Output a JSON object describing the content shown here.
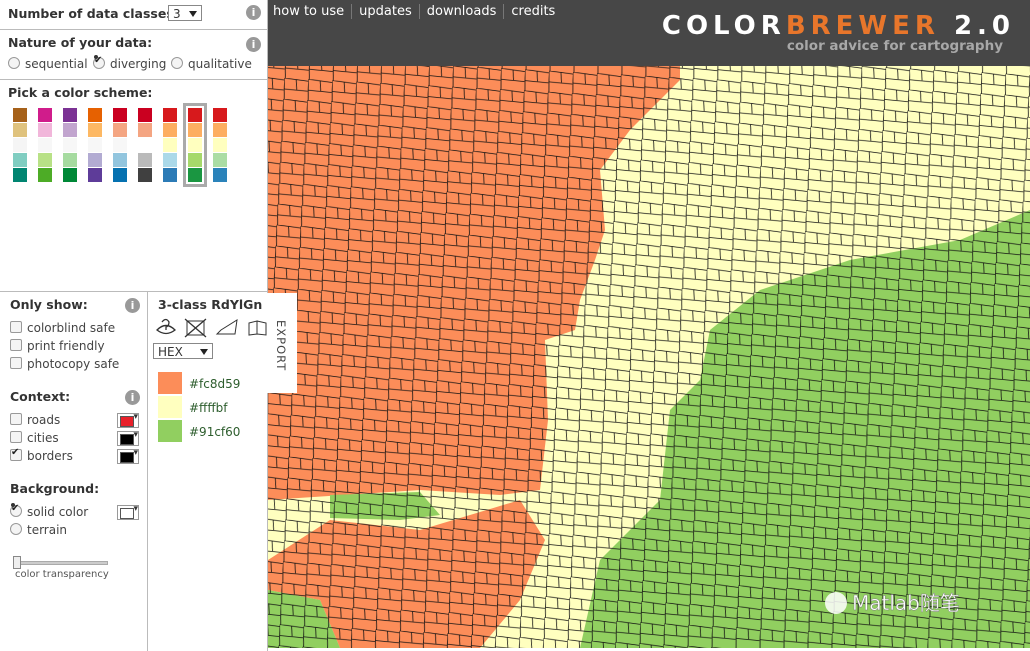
{
  "left_panel": {
    "info_icon": "i",
    "data_classes": {
      "label": "Number of data classes:",
      "value": "3"
    },
    "nature": {
      "label": "Nature of your data:",
      "options": [
        "sequential",
        "diverging",
        "qualitative"
      ],
      "selected": 1
    },
    "scheme": {
      "label": "Pick a color scheme:",
      "selected": 7,
      "columns": [
        [
          "#a6611a",
          "#dfc27d",
          "#f5f5f5",
          "#80cdc1",
          "#018571"
        ],
        [
          "#d01c8b",
          "#f1b6da",
          "#f7f7f7",
          "#b8e186",
          "#4dac26"
        ],
        [
          "#7b3294",
          "#c2a5cf",
          "#f7f7f7",
          "#a6dba0",
          "#008837"
        ],
        [
          "#e66101",
          "#fdb863",
          "#f7f7f7",
          "#b2abd2",
          "#5e3c99"
        ],
        [
          "#ca0020",
          "#f4a582",
          "#f7f7f7",
          "#92c5de",
          "#0571b0"
        ],
        [
          "#ca0020",
          "#f4a582",
          "#ffffff",
          "#bababa",
          "#404040"
        ],
        [
          "#d7191c",
          "#fdae61",
          "#ffffbf",
          "#abd9e9",
          "#2c7bb6"
        ],
        [
          "#d7191c",
          "#fdae61",
          "#ffffbf",
          "#a6d96a",
          "#1a9641"
        ],
        [
          "#d7191c",
          "#fdae61",
          "#ffffbf",
          "#abdda4",
          "#2b83ba"
        ]
      ]
    },
    "only_show": {
      "label": "Only show:",
      "options": [
        "colorblind safe",
        "print friendly",
        "photocopy safe"
      ]
    },
    "context": {
      "label": "Context:",
      "options": [
        {
          "name": "roads",
          "checked": false,
          "color": "#e8202a"
        },
        {
          "name": "cities",
          "checked": false,
          "color": "#000000"
        },
        {
          "name": "borders",
          "checked": true,
          "color": "#000000"
        }
      ]
    },
    "background": {
      "label": "Background:",
      "options": [
        "solid color",
        "terrain"
      ],
      "selected": 0,
      "color": "#ffffff"
    },
    "transparency_label": "color transparency"
  },
  "scheme_panel": {
    "title": "3-class RdYlGn",
    "format": "HEX",
    "export": "EXPORT",
    "colors": [
      "#fc8d59",
      "#ffffbf",
      "#91cf60"
    ]
  },
  "nav": [
    "how to use",
    "updates",
    "downloads",
    "credits"
  ],
  "brand": {
    "color": "COLOR",
    "brewer": "BREWER",
    "version": "2.0",
    "tagline": "color advice for cartography"
  },
  "watermark": "Matlab随笔"
}
